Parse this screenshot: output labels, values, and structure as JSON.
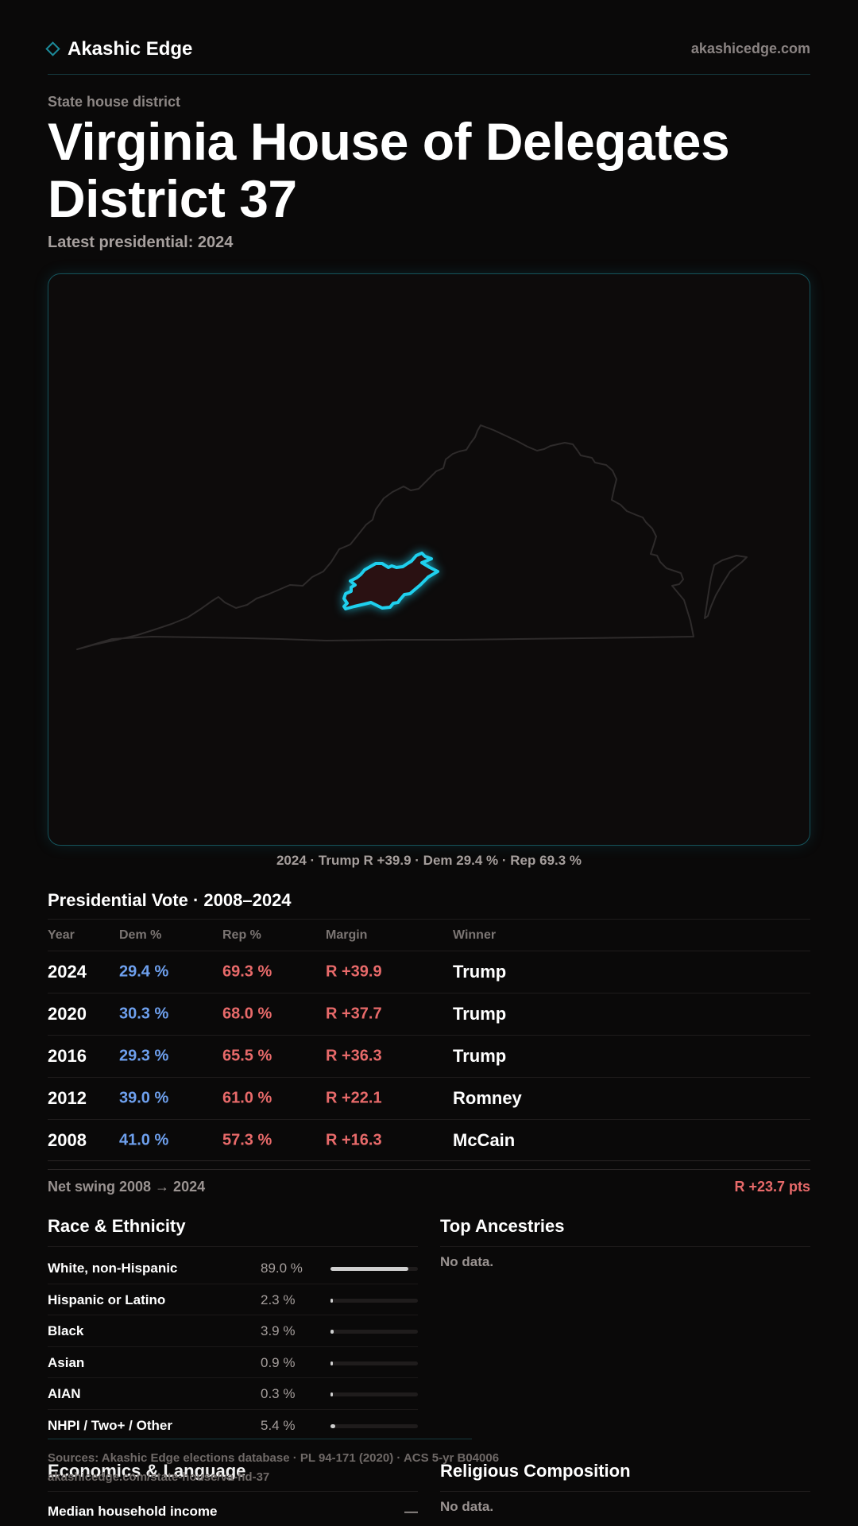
{
  "header": {
    "brand": "Akashic Edge",
    "site_url": "akashicedge.com"
  },
  "page": {
    "kicker": "State house district",
    "title": "Virginia House of Delegates District 37",
    "latest": "Latest presidential: 2024"
  },
  "map": {
    "caption": "2024 · Trump R +39.9 · Dem 29.4 % · Rep 69.3 %",
    "highlight_color": "#1fd0ee"
  },
  "presidential": {
    "heading": "Presidential Vote · 2008–2024",
    "columns": [
      "Year",
      "Dem %",
      "Rep %",
      "Margin",
      "Winner"
    ],
    "rows": [
      {
        "year": "2024",
        "dem": "29.4 %",
        "rep": "69.3 %",
        "margin": "R +39.9",
        "winner": "Trump"
      },
      {
        "year": "2020",
        "dem": "30.3 %",
        "rep": "68.0 %",
        "margin": "R +37.7",
        "winner": "Trump"
      },
      {
        "year": "2016",
        "dem": "29.3 %",
        "rep": "65.5 %",
        "margin": "R +36.3",
        "winner": "Trump"
      },
      {
        "year": "2012",
        "dem": "39.0 %",
        "rep": "61.0 %",
        "margin": "R +22.1",
        "winner": "Romney"
      },
      {
        "year": "2008",
        "dem": "41.0 %",
        "rep": "57.3 %",
        "margin": "R +16.3",
        "winner": "McCain"
      }
    ],
    "swing_label": "Net swing 2008 → 2024",
    "swing_value": "R +23.7 pts",
    "colors": {
      "dem": "#6ea0ee",
      "rep": "#e86a6a"
    }
  },
  "race": {
    "heading": "Race & Ethnicity",
    "rows": [
      {
        "label": "White, non-Hispanic",
        "value": "89.0 %",
        "fraction": 0.89
      },
      {
        "label": "Hispanic or Latino",
        "value": "2.3 %",
        "fraction": 0.023
      },
      {
        "label": "Black",
        "value": "3.9 %",
        "fraction": 0.039
      },
      {
        "label": "Asian",
        "value": "0.9 %",
        "fraction": 0.009
      },
      {
        "label": "AIAN",
        "value": "0.3 %",
        "fraction": 0.003
      },
      {
        "label": "NHPI / Two+ / Other",
        "value": "5.4 %",
        "fraction": 0.054
      }
    ]
  },
  "ancestry": {
    "heading": "Top Ancestries",
    "empty": "No data."
  },
  "footer": {
    "sources": "Sources: Akashic Edge elections database · PL 94-171 (2020) · ACS 5-yr B04006",
    "page_url": "akashicedge.com/state-house/va-hd-37"
  },
  "economics": {
    "heading": "Economics & Language",
    "row_label": "Median household income",
    "row_value": "—"
  },
  "religion": {
    "heading": "Religious Composition",
    "empty": "No data."
  }
}
